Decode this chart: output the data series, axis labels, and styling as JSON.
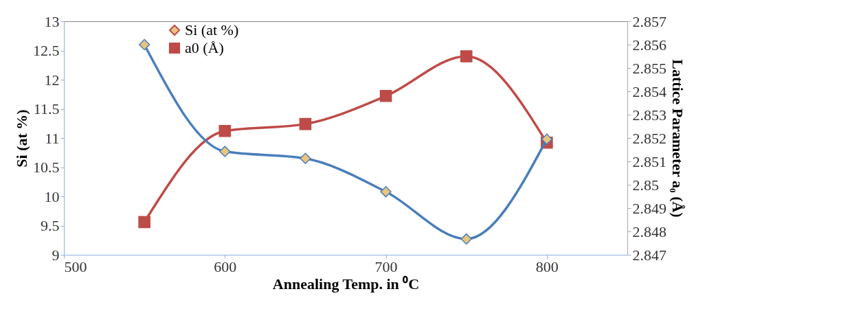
{
  "chart_data": {
    "type": "line",
    "xlabel": "Annealing Temp. in ⁰C",
    "ylabel": "Si (at %)",
    "y2label": "Lattice Parameter a₀ (Å)",
    "x": [
      550,
      600,
      650,
      700,
      750,
      800
    ],
    "xlim": [
      500,
      850
    ],
    "xticks": [
      500,
      600,
      700,
      800
    ],
    "ylim": [
      9,
      13
    ],
    "yticks": [
      9,
      9.5,
      10,
      10.5,
      11,
      11.5,
      12,
      12.5,
      13
    ],
    "y2lim": [
      2.847,
      2.857
    ],
    "y2ticks": [
      2.847,
      2.848,
      2.849,
      2.85,
      2.851,
      2.852,
      2.853,
      2.854,
      2.855,
      2.856,
      2.857
    ],
    "grid": false,
    "legend": "top",
    "line_style": "solid",
    "series": [
      {
        "name": "Si (at %)",
        "color": "#4a7ebb",
        "marker": "diamond",
        "values": [
          12.6,
          10.77,
          10.65,
          10.08,
          9.27,
          10.98
        ]
      },
      {
        "name": "a0 (Å)",
        "color": "#be4b48",
        "marker": "square",
        "axis": "y2",
        "values": [
          2.8484,
          2.8523,
          2.8526,
          2.8538,
          2.8555,
          2.8518
        ]
      }
    ]
  }
}
